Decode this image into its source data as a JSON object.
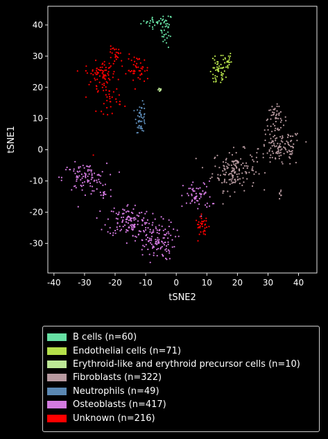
{
  "chart_data": {
    "type": "scatter",
    "title": "",
    "xlabel": "tSNE2",
    "ylabel": "tSNE1",
    "xlim": [
      -42,
      46
    ],
    "ylim": [
      -39.5,
      46
    ],
    "xticks": [
      -40,
      -30,
      -20,
      -10,
      0,
      10,
      20,
      30,
      40
    ],
    "yticks": [
      -30,
      -20,
      -10,
      0,
      10,
      20,
      30,
      40
    ],
    "grid": false,
    "legend_position": "below",
    "series": [
      {
        "name": "B cells (n=60)",
        "color": "#66e0a3",
        "clusters": [
          {
            "cx": -7,
            "cy": 40.8,
            "sx": 2.2,
            "sy": 0.8,
            "n": 26
          },
          {
            "cx": -3.2,
            "cy": 38.5,
            "sx": 0.9,
            "sy": 2.8,
            "n": 34
          }
        ]
      },
      {
        "name": "Endothelial cells (n=71)",
        "color": "#b5e04a",
        "clusters": [
          {
            "cx": 13.5,
            "cy": 24.5,
            "sx": 1.3,
            "sy": 2.2,
            "n": 45
          },
          {
            "cx": 16.5,
            "cy": 28.5,
            "sx": 0.8,
            "sy": 1.6,
            "n": 26
          }
        ]
      },
      {
        "name": "Erythroid-like and erythroid precursor cells (n=10)",
        "color": "#bde896",
        "clusters": [
          {
            "cx": -5.5,
            "cy": 19.3,
            "sx": 0.4,
            "sy": 0.3,
            "n": 10
          }
        ]
      },
      {
        "name": "Fibroblasts (n=322)",
        "color": "#b89aa0",
        "clusters": [
          {
            "cx": 19,
            "cy": -6.5,
            "sx": 3.6,
            "sy": 3.2,
            "n": 150
          },
          {
            "cx": 32.5,
            "cy": 10,
            "sx": 1.8,
            "sy": 2.0,
            "n": 45
          },
          {
            "cx": 34,
            "cy": 0.5,
            "sx": 3.5,
            "sy": 3.0,
            "n": 120
          },
          {
            "cx": 34.2,
            "cy": -14,
            "sx": 0.4,
            "sy": 1.0,
            "n": 7
          }
        ]
      },
      {
        "name": "Neutrophils (n=49)",
        "color": "#5b88b3",
        "clusters": [
          {
            "cx": -11.5,
            "cy": 10.2,
            "sx": 0.8,
            "sy": 2.3,
            "n": 49
          }
        ]
      },
      {
        "name": "Osteoblasts (n=417)",
        "color": "#d37ae0",
        "clusters": [
          {
            "cx": -30,
            "cy": -9,
            "sx": 3.6,
            "sy": 2.3,
            "n": 95
          },
          {
            "cx": -23.5,
            "cy": -14.5,
            "sx": 1.2,
            "sy": 1.0,
            "n": 12
          },
          {
            "cx": -15.5,
            "cy": -22.5,
            "sx": 3.6,
            "sy": 2.6,
            "n": 120
          },
          {
            "cx": -7,
            "cy": -29,
            "sx": 3.3,
            "sy": 3.2,
            "n": 130
          },
          {
            "cx": 7,
            "cy": -15,
            "sx": 2.3,
            "sy": 2.4,
            "n": 60
          }
        ]
      },
      {
        "name": "Unknown (n=216)",
        "color": "#ff0000",
        "clusters": [
          {
            "cx": -24.5,
            "cy": 24.5,
            "sx": 2.6,
            "sy": 1.9,
            "n": 75
          },
          {
            "cx": -12.5,
            "cy": 25.5,
            "sx": 1.8,
            "sy": 2.3,
            "n": 45
          },
          {
            "cx": -19.5,
            "cy": 30.5,
            "sx": 1.4,
            "sy": 1.3,
            "n": 25
          },
          {
            "cx": -22,
            "cy": 16.5,
            "sx": 2.0,
            "sy": 2.4,
            "n": 35
          },
          {
            "cx": 8.5,
            "cy": -24.5,
            "sx": 1.1,
            "sy": 1.6,
            "n": 35
          },
          {
            "cx": -27,
            "cy": -1.5,
            "sx": 0.1,
            "sy": 0.1,
            "n": 1
          }
        ]
      }
    ]
  }
}
